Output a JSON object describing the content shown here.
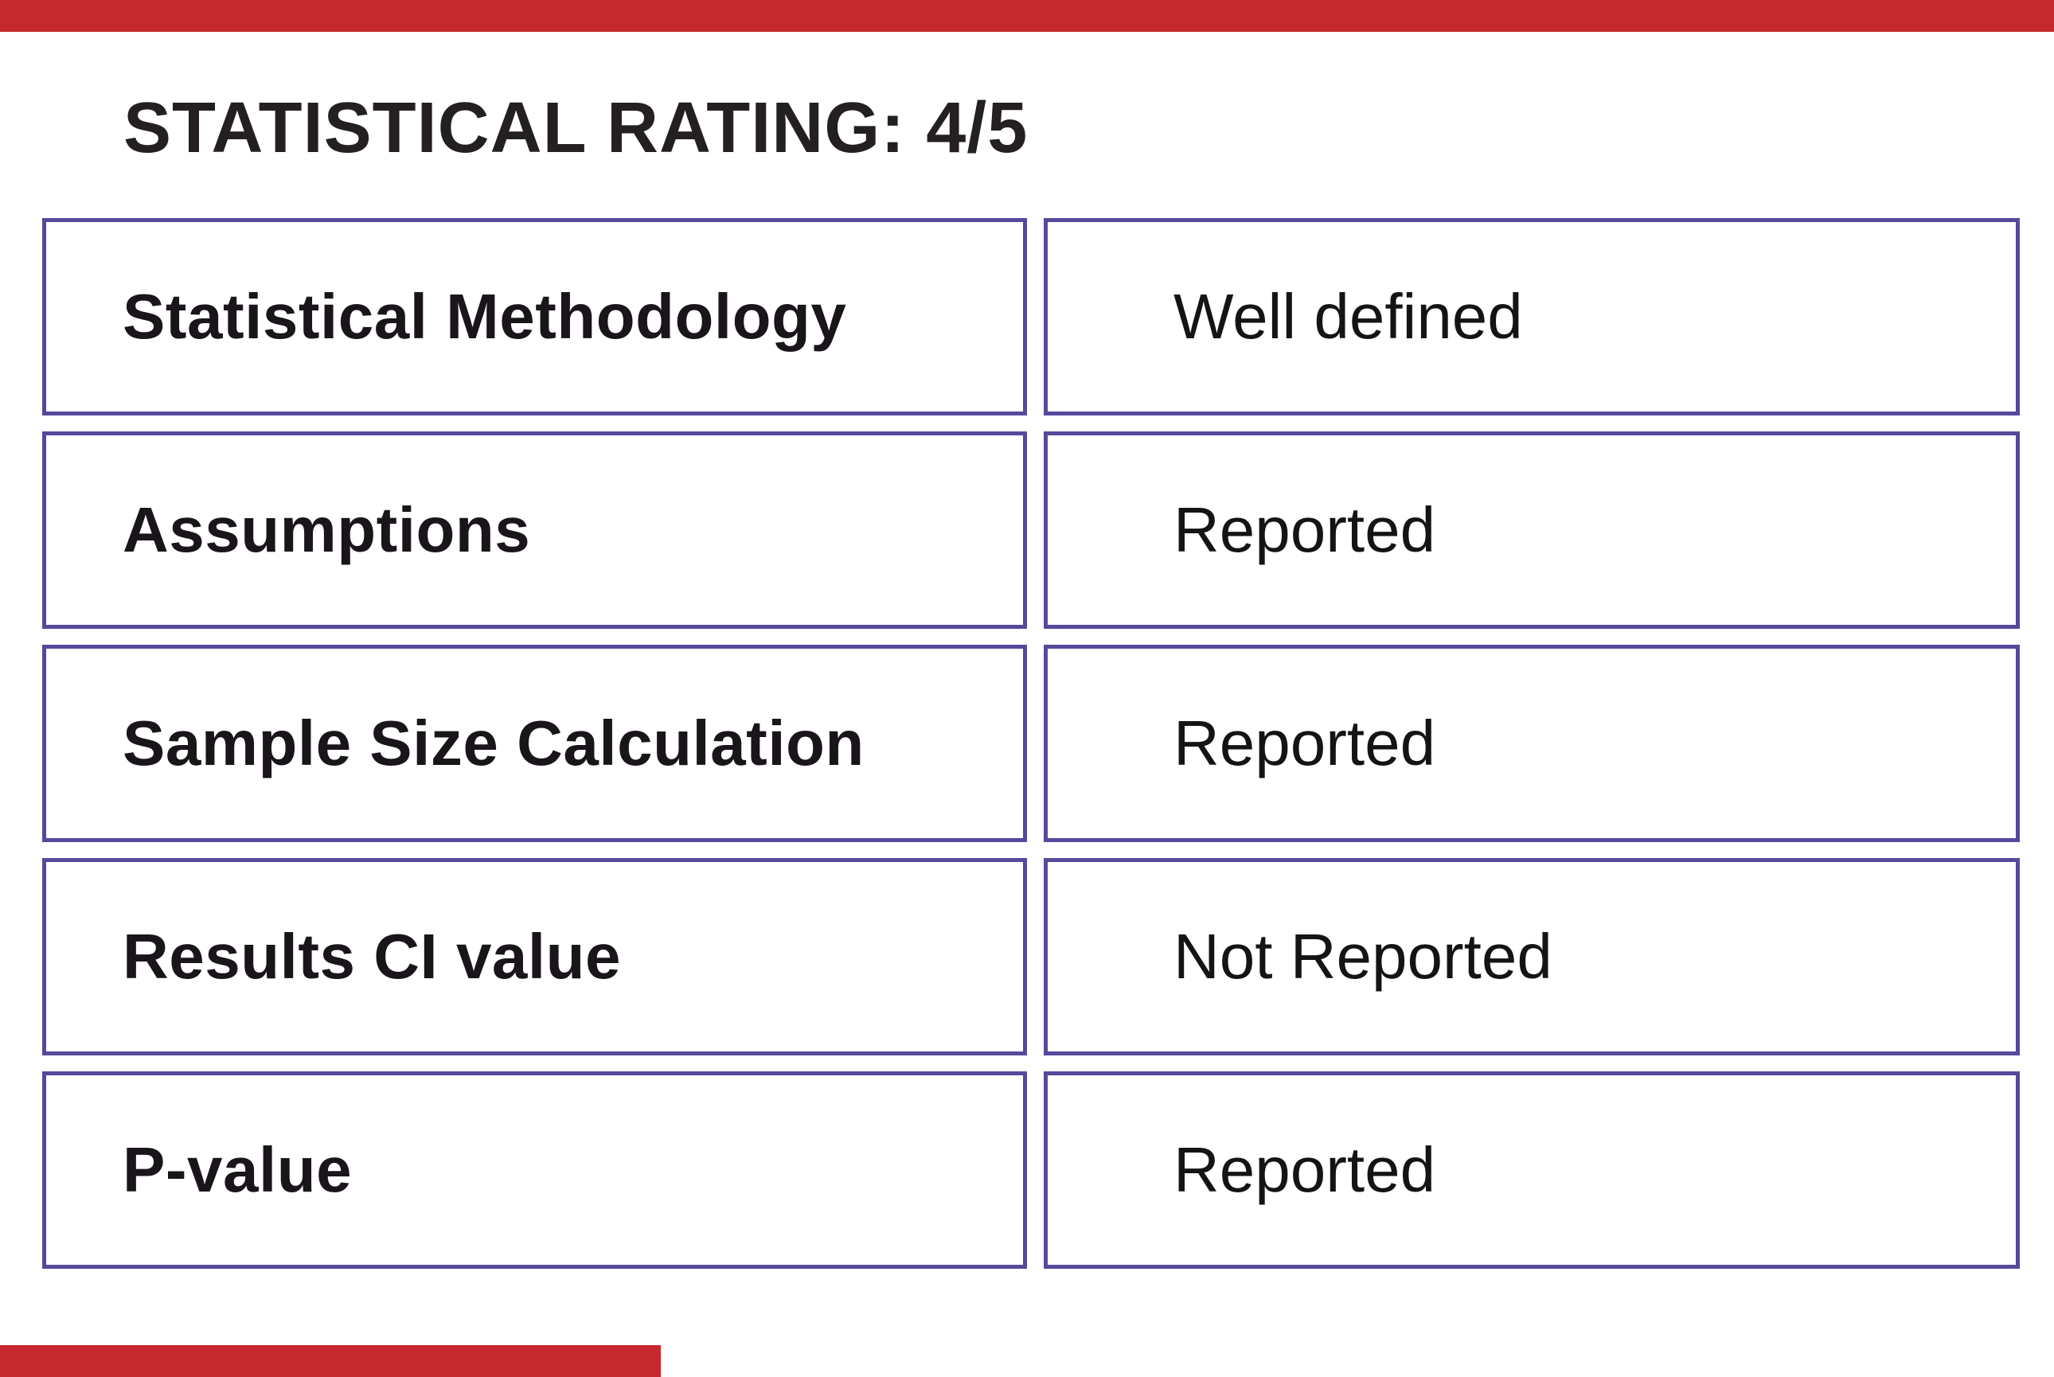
{
  "colors": {
    "accent_red": "#c5282d",
    "table_border": "#56499b",
    "title_text": "#242021",
    "label_text": "#19151a",
    "value_text": "#141414",
    "background": "#ffffff"
  },
  "title": "STATISTICAL RATING: 4/5",
  "table": {
    "rows": [
      {
        "label": "Statistical Methodology",
        "value": "Well defined"
      },
      {
        "label": "Assumptions",
        "value": "Reported"
      },
      {
        "label": "Sample Size Calculation",
        "value": "Reported"
      },
      {
        "label": "Results CI value",
        "value": "Not Reported"
      },
      {
        "label": "P-value",
        "value": "Reported"
      }
    ]
  }
}
